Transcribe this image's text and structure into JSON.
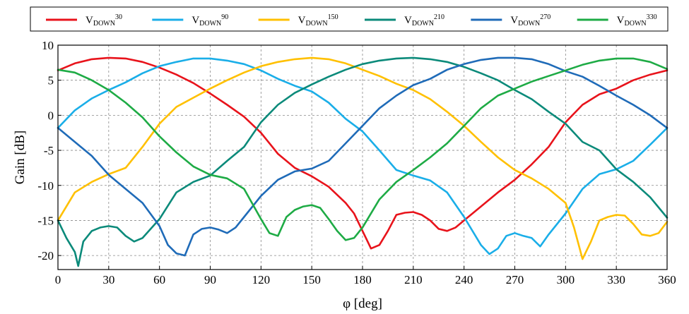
{
  "chart_data": {
    "type": "line",
    "xlabel": "φ [deg]",
    "ylabel": "Gain [dB]",
    "xlim": [
      0,
      360
    ],
    "ylim": [
      -22,
      10
    ],
    "xticks": [
      0,
      30,
      60,
      90,
      120,
      150,
      180,
      210,
      240,
      270,
      300,
      330,
      360
    ],
    "yticks": [
      -20,
      -15,
      -10,
      -5,
      0,
      5,
      10
    ],
    "grid": true,
    "legend_position": "top",
    "series": [
      {
        "legend_base": "V",
        "legend_sub": "DOWN",
        "legend_sup": "30",
        "color": "#e8131b",
        "x": [
          0,
          10,
          20,
          30,
          40,
          50,
          60,
          70,
          80,
          90,
          100,
          110,
          120,
          130,
          140,
          150,
          160,
          170,
          175,
          180,
          185,
          190,
          195,
          200,
          205,
          210,
          215,
          220,
          225,
          230,
          235,
          240,
          250,
          260,
          270,
          280,
          290,
          300,
          310,
          320,
          330,
          340,
          350,
          360
        ],
        "y": [
          6.4,
          7.4,
          8.0,
          8.2,
          8.1,
          7.6,
          6.8,
          5.8,
          4.6,
          3.1,
          1.5,
          -0.2,
          -2.5,
          -5.5,
          -7.5,
          -8.7,
          -10.2,
          -12.5,
          -14.0,
          -16.5,
          -19.0,
          -18.5,
          -16.5,
          -14.2,
          -13.9,
          -13.8,
          -14.2,
          -15.0,
          -16.2,
          -16.5,
          -16.0,
          -15.0,
          -13.0,
          -11.0,
          -9.2,
          -7.0,
          -4.5,
          -1.0,
          1.5,
          3.0,
          3.8,
          5.0,
          5.8,
          6.4
        ]
      },
      {
        "legend_base": "V",
        "legend_sub": "DOWN",
        "legend_sup": "90",
        "color": "#1aaee8",
        "x": [
          0,
          10,
          20,
          30,
          40,
          50,
          60,
          70,
          80,
          90,
          100,
          110,
          120,
          130,
          140,
          150,
          160,
          170,
          180,
          190,
          200,
          210,
          220,
          230,
          240,
          250,
          255,
          260,
          265,
          270,
          275,
          280,
          285,
          290,
          300,
          310,
          320,
          330,
          340,
          350,
          360
        ],
        "y": [
          -1.8,
          0.7,
          2.4,
          3.6,
          4.7,
          6.0,
          7.0,
          7.6,
          8.1,
          8.1,
          7.8,
          7.3,
          6.4,
          5.2,
          4.2,
          3.4,
          1.8,
          -0.5,
          -2.3,
          -5.0,
          -7.8,
          -8.6,
          -9.3,
          -11.0,
          -14.5,
          -18.5,
          -19.8,
          -19.0,
          -17.2,
          -16.8,
          -17.2,
          -17.5,
          -18.7,
          -17.0,
          -14.0,
          -10.5,
          -8.4,
          -7.7,
          -6.5,
          -4.2,
          -1.8
        ]
      },
      {
        "legend_base": "V",
        "legend_sub": "DOWN",
        "legend_sup": "150",
        "color": "#ffc000",
        "x": [
          0,
          10,
          20,
          30,
          40,
          50,
          60,
          70,
          80,
          90,
          100,
          110,
          120,
          130,
          140,
          150,
          160,
          170,
          180,
          190,
          200,
          210,
          220,
          230,
          240,
          250,
          260,
          270,
          280,
          290,
          300,
          305,
          310,
          315,
          320,
          325,
          330,
          335,
          340,
          345,
          350,
          355,
          360
        ],
        "y": [
          -15.0,
          -11.0,
          -9.5,
          -8.4,
          -7.5,
          -4.5,
          -1.2,
          1.2,
          2.5,
          3.8,
          5.0,
          6.1,
          7.0,
          7.6,
          8.0,
          8.2,
          8.0,
          7.4,
          6.5,
          5.6,
          4.5,
          3.6,
          2.3,
          0.5,
          -1.5,
          -3.8,
          -6.0,
          -7.8,
          -9.0,
          -10.5,
          -12.5,
          -16.0,
          -20.5,
          -18.0,
          -15.0,
          -14.5,
          -14.2,
          -14.3,
          -15.5,
          -17.0,
          -17.2,
          -16.8,
          -15.2
        ]
      },
      {
        "legend_base": "V",
        "legend_sub": "DOWN",
        "legend_sup": "210",
        "color": "#0b8a7a",
        "x": [
          0,
          5,
          10,
          12,
          15,
          20,
          25,
          30,
          35,
          40,
          45,
          50,
          60,
          70,
          80,
          90,
          100,
          110,
          120,
          130,
          140,
          150,
          160,
          170,
          180,
          190,
          200,
          210,
          220,
          230,
          240,
          250,
          260,
          270,
          280,
          290,
          300,
          310,
          320,
          330,
          340,
          350,
          360
        ],
        "y": [
          -15.0,
          -17.5,
          -19.5,
          -21.5,
          -18.0,
          -16.5,
          -16.0,
          -15.8,
          -16.0,
          -17.2,
          -18.0,
          -17.5,
          -14.8,
          -11.0,
          -9.5,
          -8.6,
          -6.5,
          -4.5,
          -1.0,
          1.5,
          3.2,
          4.4,
          5.5,
          6.5,
          7.3,
          7.8,
          8.1,
          8.2,
          8.0,
          7.6,
          6.9,
          6.0,
          5.0,
          3.6,
          2.3,
          0.5,
          -1.2,
          -3.8,
          -5.0,
          -7.7,
          -9.5,
          -11.7,
          -14.6
        ]
      },
      {
        "legend_base": "V",
        "legend_sub": "DOWN",
        "legend_sup": "270",
        "color": "#1f6bb8",
        "x": [
          0,
          10,
          20,
          30,
          40,
          50,
          60,
          65,
          70,
          75,
          80,
          85,
          90,
          95,
          100,
          105,
          110,
          120,
          130,
          140,
          150,
          160,
          170,
          180,
          190,
          200,
          210,
          220,
          230,
          240,
          250,
          260,
          270,
          280,
          290,
          300,
          310,
          320,
          330,
          340,
          350,
          360
        ],
        "y": [
          -1.8,
          -3.8,
          -5.8,
          -8.5,
          -10.5,
          -12.5,
          -15.8,
          -18.5,
          -19.7,
          -20.0,
          -17.0,
          -16.2,
          -16.0,
          -16.3,
          -16.8,
          -16.0,
          -14.5,
          -11.5,
          -9.2,
          -8.0,
          -7.6,
          -6.5,
          -4.0,
          -1.5,
          1.0,
          2.8,
          4.3,
          5.2,
          6.5,
          7.3,
          7.9,
          8.2,
          8.2,
          8.0,
          7.3,
          6.3,
          5.5,
          4.2,
          2.8,
          1.5,
          0.0,
          -1.8
        ]
      },
      {
        "legend_base": "V",
        "legend_sub": "DOWN",
        "legend_sup": "330",
        "color": "#1eab45",
        "x": [
          0,
          10,
          20,
          30,
          40,
          50,
          60,
          70,
          80,
          90,
          100,
          110,
          120,
          125,
          130,
          135,
          140,
          145,
          150,
          155,
          160,
          165,
          170,
          175,
          180,
          190,
          200,
          210,
          220,
          230,
          240,
          250,
          260,
          270,
          280,
          290,
          300,
          310,
          320,
          330,
          340,
          350,
          360
        ],
        "y": [
          6.5,
          6.1,
          5.0,
          3.6,
          1.8,
          -0.3,
          -3.0,
          -5.3,
          -7.3,
          -8.5,
          -9.0,
          -10.5,
          -14.8,
          -16.8,
          -17.2,
          -14.5,
          -13.5,
          -13.0,
          -12.8,
          -13.2,
          -14.8,
          -16.5,
          -17.8,
          -17.5,
          -16.0,
          -12.0,
          -9.5,
          -7.8,
          -6.0,
          -4.0,
          -1.5,
          1.0,
          2.8,
          3.8,
          4.8,
          5.6,
          6.4,
          7.2,
          7.8,
          8.1,
          8.1,
          7.6,
          6.6
        ]
      }
    ]
  }
}
